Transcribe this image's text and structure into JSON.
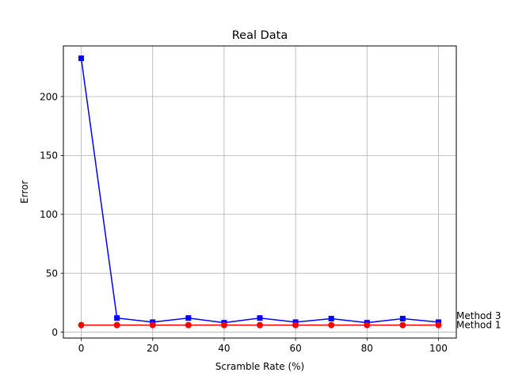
{
  "chart_data": {
    "type": "line",
    "title": "Real Data",
    "xlabel": "Scramble Rate (%)",
    "ylabel": "Error",
    "xlim": [
      -5,
      105
    ],
    "ylim": [
      -5,
      243
    ],
    "xticks": [
      0,
      20,
      40,
      60,
      80,
      100
    ],
    "yticks": [
      0,
      50,
      100,
      150,
      200
    ],
    "grid": true,
    "x": [
      0,
      10,
      20,
      30,
      40,
      50,
      60,
      70,
      80,
      90,
      100
    ],
    "series": [
      {
        "name": "Method 3",
        "color": "#0000ff",
        "marker": "square",
        "values": [
          232.5,
          12,
          8.5,
          12,
          8,
          12,
          8.5,
          11.5,
          8,
          11.5,
          8.5
        ]
      },
      {
        "name": "Method 1",
        "color": "#ff0000",
        "marker": "circle",
        "values": [
          6,
          6,
          6,
          6,
          6,
          6,
          6,
          6,
          6,
          6,
          6
        ]
      }
    ]
  }
}
